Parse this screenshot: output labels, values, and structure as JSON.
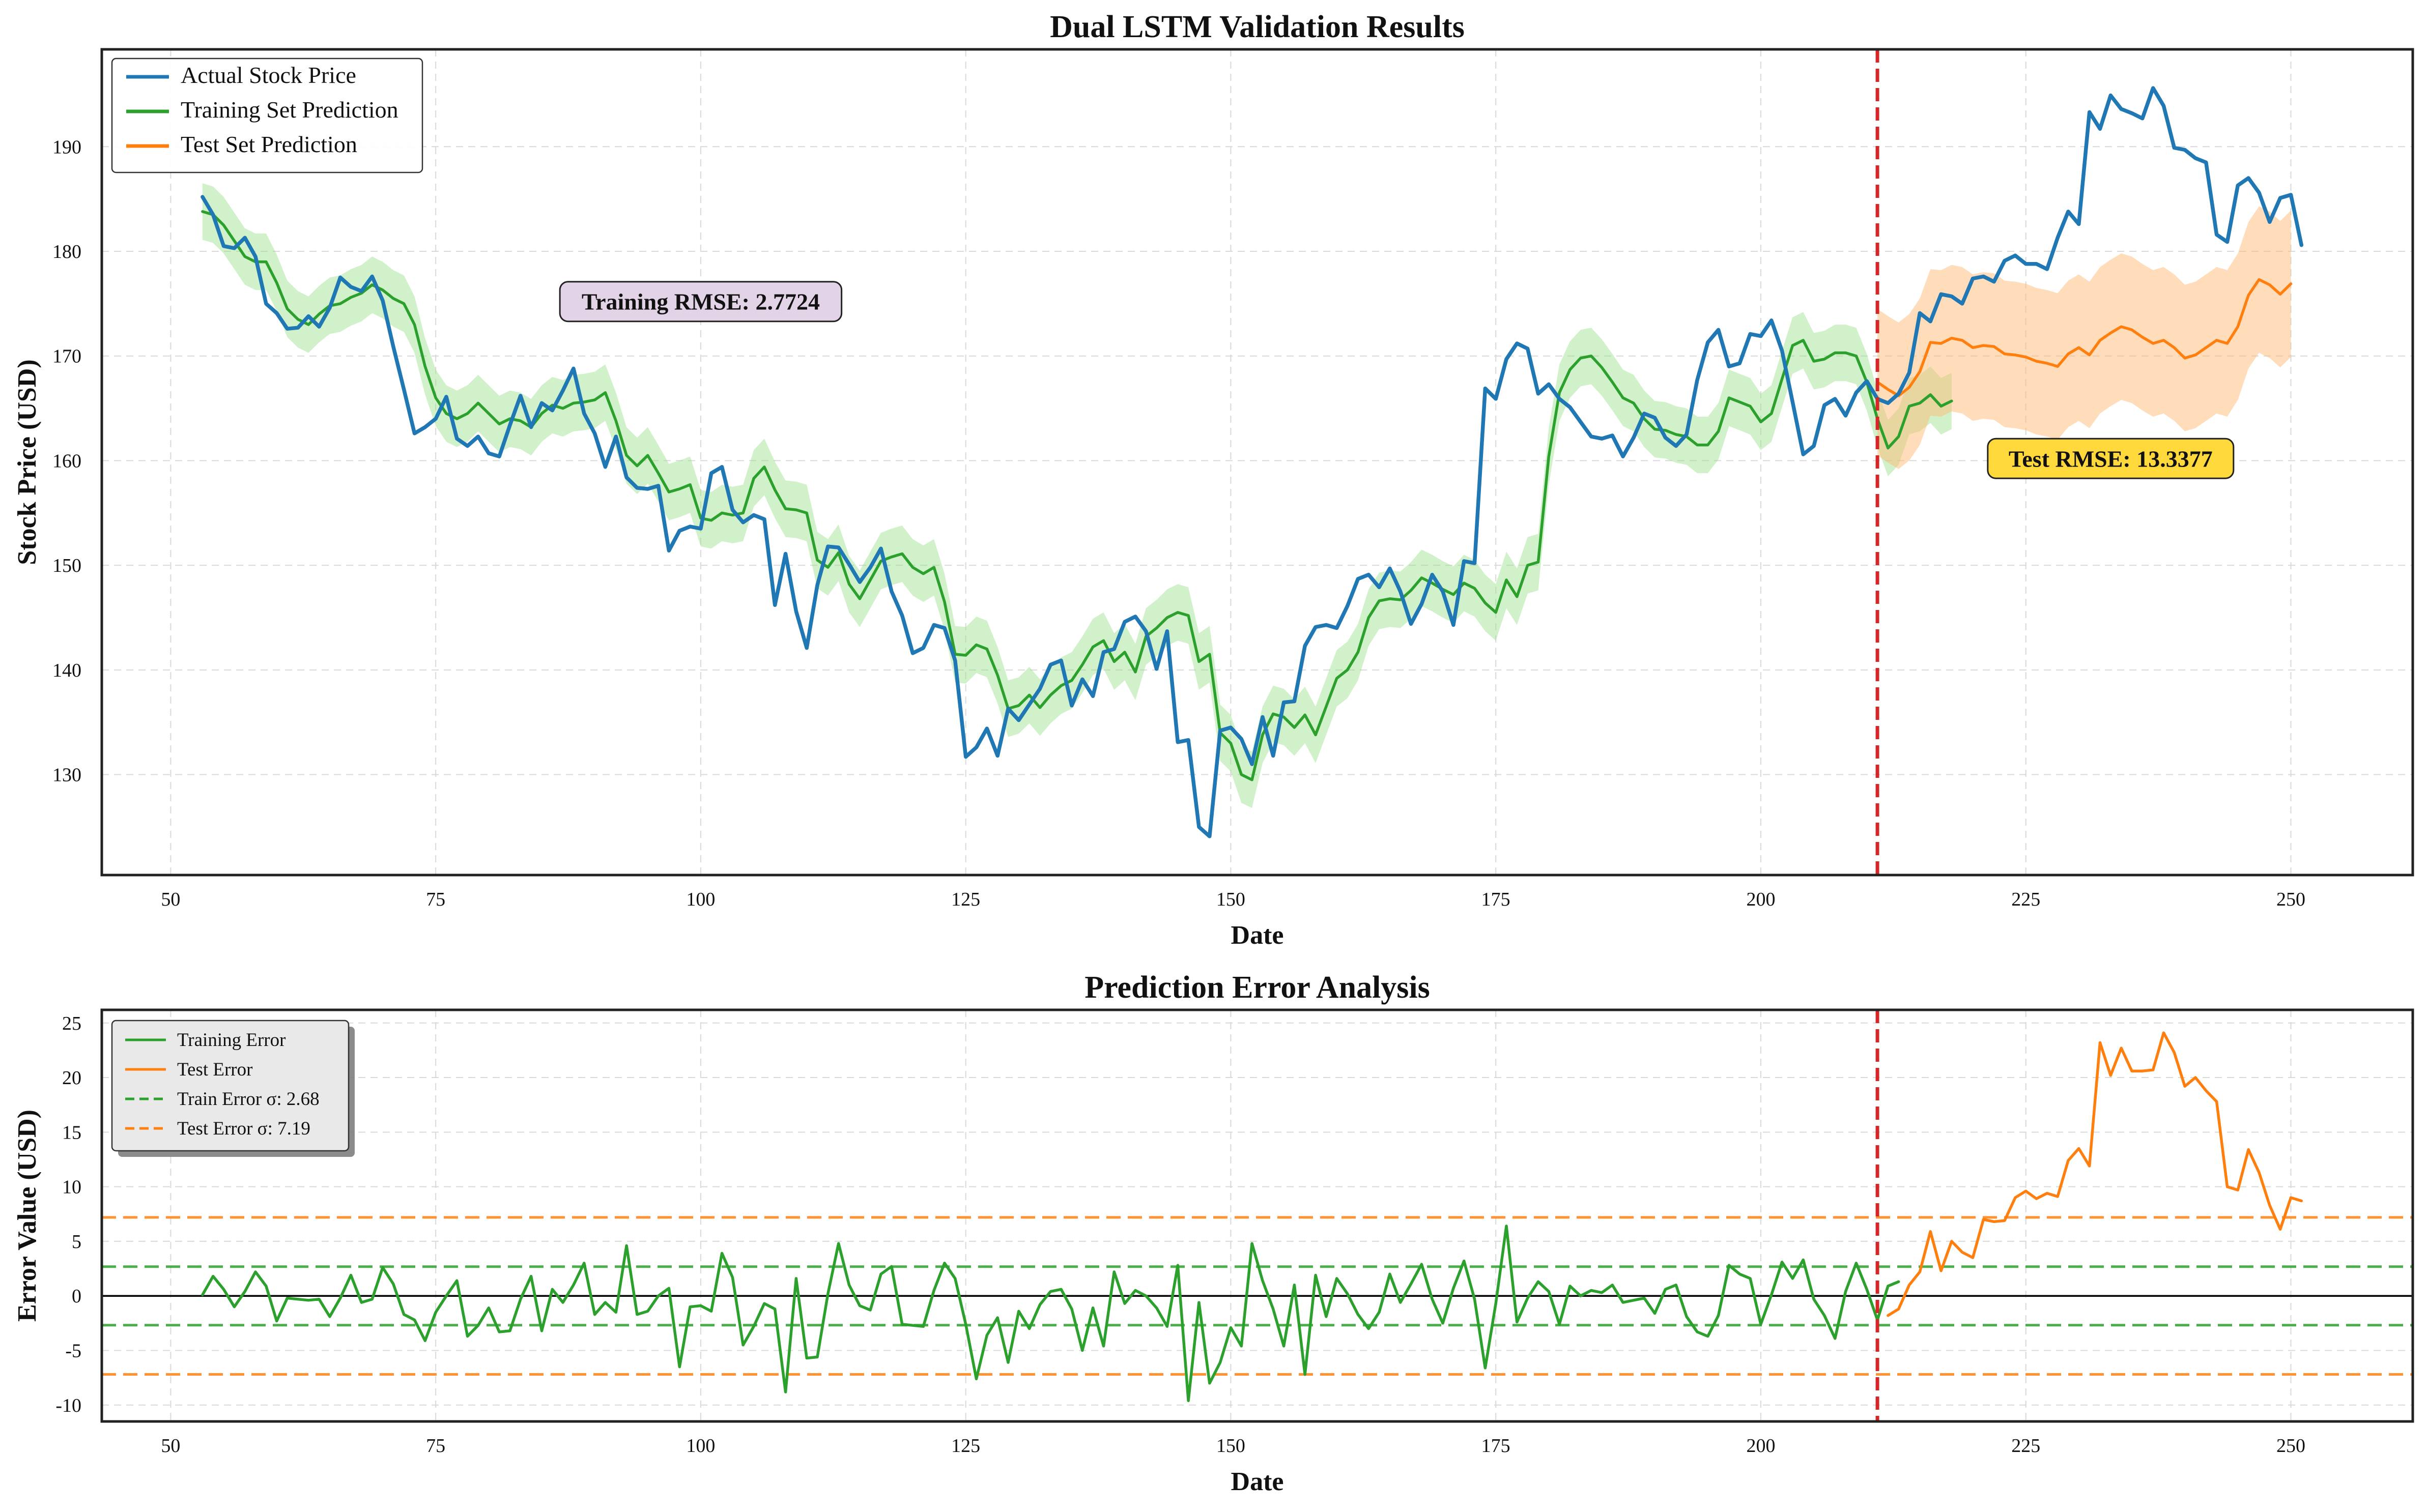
{
  "colors": {
    "actual": "#1f77b4",
    "train": "#2ca02c",
    "test": "#ff7f0e",
    "split": "#d62728",
    "train_band": "#98df8a",
    "test_band": "#ffbb78",
    "train_rmse_box": "#e3d3e6",
    "test_rmse_box": "#ffd93b"
  },
  "chart_data": [
    {
      "type": "line",
      "title": "Dual LSTM Validation Results",
      "xlabel": "Date",
      "ylabel": "Stock Price (USD)",
      "xlim": [
        43.5,
        261.5
      ],
      "ylim": [
        120.4,
        199.3
      ],
      "xticks": [
        50,
        75,
        100,
        125,
        150,
        175,
        200,
        225,
        250
      ],
      "yticks": [
        130,
        140,
        150,
        160,
        170,
        180,
        190
      ],
      "xtick_labels": [
        "50",
        "75",
        "100",
        "125",
        "150",
        "175",
        "200",
        "225",
        "250"
      ],
      "ytick_labels": [
        "130",
        "140",
        "150",
        "160",
        "170",
        "180",
        "190"
      ],
      "grid": true,
      "legend": "top-left",
      "split_x": 211,
      "annotations": [
        {
          "text": "Training RMSE: 2.7724",
          "x": 100,
          "y": 175.2,
          "style": "train"
        },
        {
          "text": "Test RMSE: 13.3377",
          "x": 233,
          "y": 160.2,
          "style": "test"
        }
      ],
      "series": [
        {
          "name": "Actual Stock Price",
          "color_key": "actual",
          "x_start": 53,
          "values": [
            185.2,
            183.5,
            180.5,
            180.3,
            181.3,
            179.5,
            175.0,
            174.1,
            172.6,
            172.7,
            173.8,
            172.8,
            174.6,
            177.5,
            176.6,
            176.2,
            177.6,
            175.3,
            170.9,
            166.8,
            162.6,
            163.2,
            164.0,
            166.1,
            162.1,
            161.4,
            162.3,
            160.7,
            160.4,
            163.4,
            166.2,
            163.2,
            165.5,
            164.8,
            166.7,
            168.8,
            164.5,
            162.6,
            159.4,
            162.3,
            158.4,
            157.4,
            157.3,
            157.6,
            151.4,
            153.3,
            153.7,
            153.5,
            158.8,
            159.4,
            155.3,
            154.1,
            154.8,
            154.4,
            146.2,
            151.1,
            145.6,
            142.1,
            148.1,
            151.8,
            151.7,
            150.1,
            148.4,
            149.8,
            151.6,
            147.5,
            145.2,
            141.6,
            142.1,
            144.3,
            144.0,
            140.9,
            131.7,
            132.6,
            134.4,
            131.8,
            136.3,
            135.2,
            136.7,
            138.2,
            140.5,
            140.9,
            136.6,
            139.1,
            137.5,
            141.7,
            142.0,
            144.6,
            145.1,
            143.7,
            140.1,
            143.7,
            133.1,
            133.3,
            125.0,
            124.1,
            134.2,
            134.5,
            133.4,
            131.0,
            135.5,
            131.8,
            136.9,
            137.0,
            142.3,
            144.1,
            144.3,
            144.0,
            146.1,
            148.7,
            149.1,
            147.9,
            149.7,
            147.5,
            144.4,
            146.3,
            149.1,
            147.5,
            144.3,
            150.4,
            150.2,
            166.9,
            165.9,
            169.7,
            171.2,
            170.7,
            166.4,
            167.3,
            165.9,
            165.1,
            163.7,
            162.3,
            162.1,
            162.4,
            160.4,
            162.2,
            164.5,
            164.1,
            162.2,
            161.4,
            162.5,
            167.7,
            171.3,
            172.5,
            169.0,
            169.3,
            172.1,
            171.9,
            173.4,
            170.5,
            165.6,
            160.6,
            161.4,
            165.3,
            165.9,
            164.3,
            166.5,
            167.6,
            165.9,
            165.5,
            166.4,
            168.4,
            174.1,
            173.3,
            175.9,
            175.7,
            175.0,
            177.4,
            177.6,
            177.1,
            179.1,
            179.6,
            178.8,
            178.8,
            178.3,
            181.3,
            183.8,
            182.6,
            193.3,
            191.7,
            194.9,
            193.6,
            193.2,
            192.7,
            195.6,
            193.9,
            189.9,
            189.7,
            188.9,
            188.5,
            181.6,
            180.9,
            186.3,
            187.0,
            185.6,
            182.8,
            185.1,
            185.4,
            180.6
          ]
        },
        {
          "name": "Training Set Prediction",
          "color_key": "train",
          "x_start": 53,
          "band": 2.7,
          "values": [
            183.8,
            183.5,
            182.5,
            181.0,
            179.5,
            179.0,
            179.0,
            177.0,
            174.5,
            173.5,
            173.0,
            174.0,
            174.8,
            175.0,
            175.6,
            176.0,
            176.8,
            176.3,
            175.5,
            175.0,
            173.0,
            169.0,
            166.0,
            164.5,
            164.0,
            164.5,
            165.5,
            164.5,
            163.5,
            164.0,
            163.8,
            163.2,
            164.5,
            165.3,
            165.0,
            165.5,
            165.6,
            165.8,
            166.5,
            163.8,
            160.5,
            159.5,
            160.5,
            158.8,
            157.0,
            157.3,
            157.7,
            154.5,
            154.3,
            155.0,
            154.8,
            155.0,
            158.3,
            159.4,
            157.2,
            155.4,
            155.3,
            155.0,
            150.5,
            149.8,
            151.2,
            148.2,
            146.8,
            148.6,
            150.4,
            150.8,
            151.1,
            149.8,
            149.2,
            149.8,
            146.5,
            141.5,
            141.4,
            142.4,
            142.0,
            139.5,
            136.3,
            136.6,
            137.6,
            136.4,
            137.6,
            138.5,
            139.0,
            140.5,
            142.2,
            142.8,
            140.8,
            141.7,
            139.8,
            143.2,
            144.0,
            145.0,
            145.5,
            145.2,
            140.8,
            141.5,
            134.0,
            133.0,
            130.0,
            129.5,
            133.8,
            135.8,
            135.5,
            134.5,
            135.7,
            133.8,
            136.5,
            139.2,
            140.0,
            141.7,
            145.0,
            146.6,
            146.8,
            146.7,
            147.6,
            148.8,
            148.3,
            147.7,
            147.2,
            148.3,
            147.8,
            146.4,
            145.5,
            148.6,
            147.0,
            150.0,
            150.3,
            160.4,
            166.5,
            168.7,
            169.8,
            170.0,
            168.9,
            167.5,
            166.0,
            165.5,
            164.0,
            163.0,
            162.9,
            162.5,
            162.3,
            161.5,
            161.5,
            162.8,
            166.0,
            165.6,
            165.2,
            163.7,
            164.5,
            167.8,
            171.0,
            171.5,
            169.5,
            169.7,
            170.3,
            170.3,
            170.0,
            167.5,
            164.0,
            161.2,
            162.3,
            165.2,
            165.5,
            166.3,
            165.2,
            165.7
          ]
        },
        {
          "name": "Test Set Prediction",
          "color_key": "test",
          "x_start": 211,
          "band": 7.0,
          "values": [
            167.5,
            166.8,
            166.2,
            167.0,
            168.5,
            171.3,
            171.2,
            171.7,
            171.5,
            170.8,
            171.0,
            170.9,
            170.2,
            170.1,
            169.9,
            169.5,
            169.3,
            169.0,
            170.2,
            170.8,
            170.1,
            171.5,
            172.2,
            172.8,
            172.5,
            171.8,
            171.2,
            171.5,
            170.8,
            169.8,
            170.1,
            170.8,
            171.5,
            171.2,
            172.8,
            175.8,
            177.3,
            176.8,
            175.9,
            176.9
          ]
        }
      ]
    },
    {
      "type": "line",
      "title": "Prediction Error Analysis",
      "xlabel": "Date",
      "ylabel": "Error Value (USD)",
      "xlim": [
        43.5,
        261.5
      ],
      "ylim": [
        -11.5,
        26.2
      ],
      "xticks": [
        50,
        75,
        100,
        125,
        150,
        175,
        200,
        225,
        250
      ],
      "yticks": [
        -10,
        -5,
        0,
        5,
        10,
        15,
        20,
        25
      ],
      "xtick_labels": [
        "50",
        "75",
        "100",
        "125",
        "150",
        "175",
        "200",
        "225",
        "250"
      ],
      "ytick_labels": [
        "-10",
        "-5",
        "0",
        "5",
        "10",
        "15",
        "20",
        "25"
      ],
      "grid": true,
      "legend": "top-left",
      "split_x": 211,
      "zero_line": 0,
      "series": [
        {
          "name": "Training Error",
          "color_key": "train",
          "x_start": 53,
          "values": [
            0.1,
            1.8,
            0.6,
            -1.0,
            0.4,
            2.2,
            0.9,
            -2.3,
            -0.2,
            -0.3,
            -0.4,
            -0.3,
            -1.9,
            -0.2,
            1.9,
            -0.6,
            -0.3,
            2.6,
            1.1,
            -1.7,
            -2.2,
            -4.1,
            -1.5,
            0.0,
            1.4,
            -3.7,
            -2.7,
            -1.1,
            -3.3,
            -3.2,
            -0.3,
            1.8,
            -3.2,
            0.6,
            -0.6,
            1.0,
            3.0,
            -1.7,
            -0.6,
            -1.5,
            4.6,
            -1.7,
            -1.4,
            0.0,
            0.7,
            -6.5,
            -1.0,
            -0.9,
            -1.4,
            3.9,
            1.7,
            -4.5,
            -2.8,
            -0.7,
            -1.2,
            -8.8,
            1.6,
            -5.7,
            -5.6,
            0.2,
            4.8,
            1.0,
            -0.9,
            -1.3,
            2.0,
            2.7,
            -2.6,
            -2.7,
            -2.8,
            0.5,
            3.0,
            1.6,
            -2.6,
            -7.6,
            -3.6,
            -2.0,
            -6.1,
            -1.4,
            -3.0,
            -0.8,
            0.4,
            0.6,
            -1.2,
            -5.0,
            -1.1,
            -4.6,
            2.2,
            -0.7,
            0.5,
            0.0,
            -1.1,
            -2.8,
            2.8,
            -9.6,
            -0.6,
            -8.0,
            -6.1,
            -2.9,
            -4.6,
            4.8,
            1.4,
            -1.2,
            -4.6,
            1.0,
            -7.2,
            1.9,
            -1.9,
            1.6,
            0.2,
            -1.7,
            -3.0,
            -1.5,
            2.0,
            -0.6,
            1.1,
            2.9,
            -0.3,
            -2.5,
            0.7,
            3.2,
            -0.3,
            -6.6,
            -0.7,
            6.4,
            -2.4,
            -0.2,
            1.3,
            0.4,
            -2.6,
            0.9,
            0.0,
            0.5,
            0.3,
            1.0,
            -0.6,
            -0.4,
            -0.2,
            -1.6,
            0.6,
            1.0,
            -1.9,
            -3.3,
            -3.7,
            -1.8,
            2.8,
            2.0,
            1.6,
            -2.6,
            0.1,
            3.1,
            1.6,
            3.3,
            -0.3,
            -1.8,
            -3.9,
            0.4,
            3.0,
            0.6,
            -2.2,
            0.9,
            1.3
          ]
        },
        {
          "name": "Test Error",
          "color_key": "test",
          "x_start": 212,
          "values": [
            -1.8,
            -1.2,
            1.0,
            2.2,
            5.9,
            2.3,
            5.0,
            4.0,
            3.5,
            7.0,
            6.8,
            6.9,
            9.0,
            9.6,
            8.9,
            9.4,
            9.1,
            12.4,
            13.5,
            11.9,
            23.2,
            20.2,
            22.7,
            20.6,
            20.6,
            20.7,
            24.1,
            22.3,
            19.2,
            20.0,
            18.8,
            17.8,
            10.0,
            9.7,
            13.4,
            11.3,
            8.3,
            6.1,
            9.0,
            8.7
          ]
        }
      ],
      "reference_lines": [
        {
          "name": "Train Error σ: 2.68",
          "color_key": "train",
          "value": 2.68
        },
        {
          "name": "",
          "color_key": "train",
          "value": -2.68
        },
        {
          "name": "Test Error σ: 7.19",
          "color_key": "test",
          "value": 7.19
        },
        {
          "name": "",
          "color_key": "test",
          "value": -7.19
        }
      ]
    }
  ]
}
